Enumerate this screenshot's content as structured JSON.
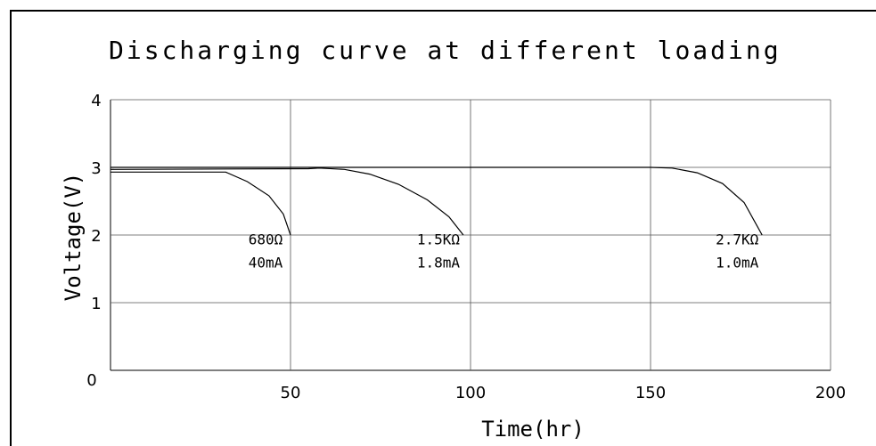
{
  "chart_data": {
    "type": "line",
    "title": "Discharging curve at different loading",
    "xlabel": "Time(hr)",
    "ylabel": "Voltage(V)",
    "xlim": [
      0,
      200
    ],
    "ylim": [
      0,
      4
    ],
    "x_ticks": [
      "50",
      "100",
      "150",
      "200"
    ],
    "y_ticks": [
      "0",
      "1",
      "2",
      "3",
      "4"
    ],
    "grid": true,
    "series": [
      {
        "name": "680Ω 40mA",
        "points": [
          [
            0,
            2.93
          ],
          [
            32,
            2.93
          ],
          [
            38,
            2.79
          ],
          [
            44,
            2.58
          ],
          [
            48,
            2.31
          ],
          [
            50,
            2.0
          ]
        ]
      },
      {
        "name": "1.5KΩ 1.8mA",
        "points": [
          [
            0,
            2.97
          ],
          [
            55,
            2.98
          ],
          [
            58,
            2.99
          ],
          [
            65,
            2.97
          ],
          [
            72,
            2.9
          ],
          [
            80,
            2.75
          ],
          [
            88,
            2.52
          ],
          [
            94,
            2.27
          ],
          [
            98,
            2.0
          ]
        ]
      },
      {
        "name": "2.7KΩ 1.0mA",
        "points": [
          [
            0,
            3.0
          ],
          [
            150,
            3.0
          ],
          [
            156,
            2.99
          ],
          [
            163,
            2.92
          ],
          [
            170,
            2.76
          ],
          [
            176,
            2.48
          ],
          [
            181,
            2.0
          ]
        ]
      }
    ],
    "annotations": [
      {
        "line1": "680Ω",
        "line2": "40mA",
        "x": 50,
        "y": 1.86
      },
      {
        "line1": "1.5KΩ",
        "line2": "1.8mA",
        "x": 98,
        "y": 1.86
      },
      {
        "line1": "2.7KΩ",
        "line2": "1.0mA",
        "x": 181,
        "y": 1.86
      }
    ]
  }
}
